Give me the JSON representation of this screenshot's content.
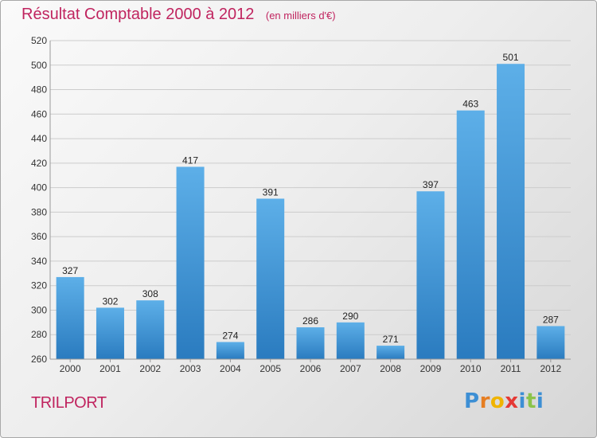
{
  "title": "Résultat Comptable 2000 à 2012",
  "subtitle": "(en milliers d'€)",
  "town": "TRILPORT",
  "logo": {
    "letters": [
      "P",
      "r",
      "o",
      "x",
      "i",
      "t",
      "i"
    ],
    "colors": [
      "#3d8fd4",
      "#e67e22",
      "#f0b400",
      "#e53935",
      "#3d8fd4",
      "#8bc34a",
      "#3d8fd4"
    ]
  },
  "colors": {
    "bar_light": "#5dafe8",
    "bar_dark": "#2a7bbf",
    "title": "#c0245f",
    "grid": "#cccccc"
  },
  "chart_data": {
    "type": "bar",
    "title": "Résultat Comptable 2000 à 2012",
    "subtitle": "(en milliers d'€)",
    "categories": [
      "2000",
      "2001",
      "2002",
      "2003",
      "2004",
      "2005",
      "2006",
      "2007",
      "2008",
      "2009",
      "2010",
      "2011",
      "2012"
    ],
    "values": [
      327,
      302,
      308,
      417,
      274,
      391,
      286,
      290,
      271,
      397,
      463,
      501,
      287
    ],
    "ylim": [
      260,
      520
    ],
    "yticks": [
      260,
      280,
      300,
      320,
      340,
      360,
      380,
      400,
      420,
      440,
      460,
      480,
      500,
      520
    ],
    "grid": true,
    "data_labels": true
  }
}
